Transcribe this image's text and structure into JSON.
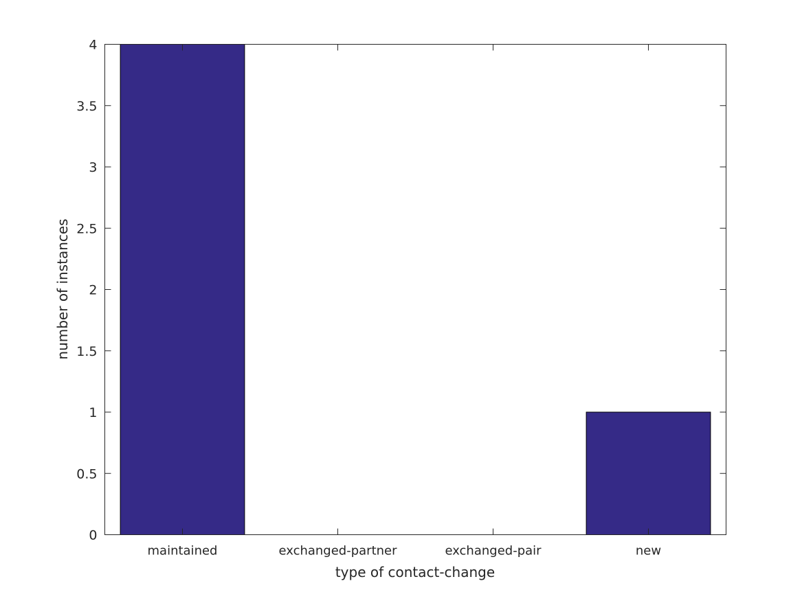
{
  "chart_data": {
    "type": "bar",
    "categories": [
      "maintained",
      "exchanged-partner",
      "exchanged-pair",
      "new"
    ],
    "values": [
      4,
      0,
      0,
      1
    ],
    "title": "",
    "xlabel": "type of contact-change",
    "ylabel": "number of instances",
    "ylim": [
      0,
      4
    ],
    "yticks": [
      0,
      0.5,
      1,
      1.5,
      2,
      2.5,
      3,
      3.5,
      4
    ],
    "ytick_labels": [
      "0",
      "0.5",
      "1",
      "1.5",
      "2",
      "2.5",
      "3",
      "3.5",
      "4"
    ],
    "grid": false,
    "bar_color": "#352a87",
    "axis_color": "#262626"
  }
}
